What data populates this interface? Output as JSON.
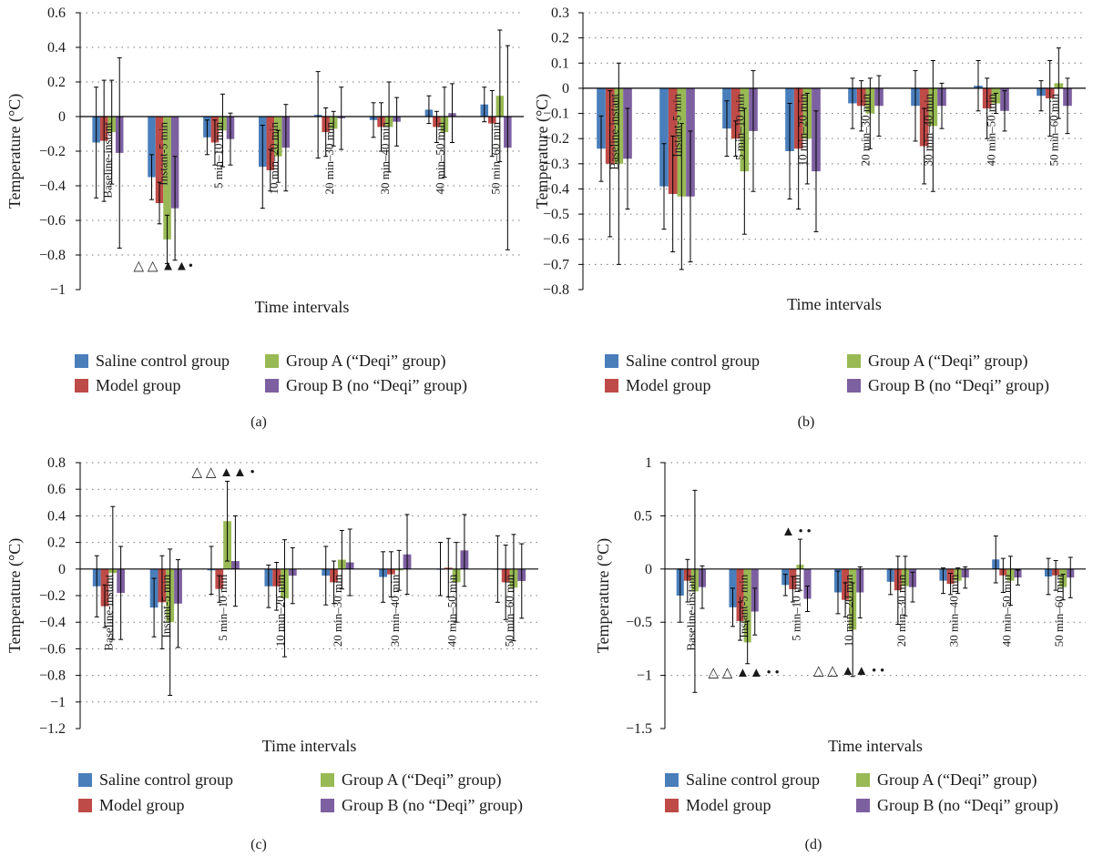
{
  "colors": {
    "saline": "#4a7ebb",
    "model": "#be4b48",
    "groupA": "#98b954",
    "groupB": "#7d60a0"
  },
  "chart_data": [
    {
      "type": "bar",
      "panel_label": "(a)",
      "xlabel": "Time intervals",
      "ylabel": "Temperature (°C)",
      "ylim": [
        -1,
        0.6
      ],
      "yticks": [
        -1,
        -0.8,
        -0.6,
        -0.4,
        -0.2,
        0,
        0.2,
        0.4,
        0.6
      ],
      "ytick_labels": [
        "−1",
        "−0.8",
        "−0.6",
        "−0.4",
        "−0.2",
        "0",
        "0.2",
        "0.4",
        "0.6"
      ],
      "categories": [
        "Baseline-instant",
        "Instant-5 min",
        "5 min–10 min",
        "10 min–20 min",
        "20 min–30 min",
        "30 min–40 min",
        "40 min–50 min",
        "50 min–60 min"
      ],
      "series": [
        {
          "name": "Saline control group",
          "color_key": "saline",
          "values": [
            -0.15,
            -0.35,
            -0.12,
            -0.29,
            0.01,
            -0.02,
            0.04,
            0.07
          ],
          "errors": [
            0.32,
            0.13,
            0.1,
            0.24,
            0.25,
            0.1,
            0.08,
            0.1
          ]
        },
        {
          "name": "Model group",
          "color_key": "model",
          "values": [
            -0.14,
            -0.5,
            -0.15,
            -0.31,
            -0.09,
            -0.06,
            -0.06,
            -0.04
          ],
          "errors": [
            0.35,
            0.12,
            0.13,
            0.12,
            0.14,
            0.14,
            0.09,
            0.19
          ]
        },
        {
          "name": "Group A (“Deqi” group)",
          "color_key": "groupA",
          "values": [
            -0.09,
            -0.71,
            -0.08,
            -0.23,
            -0.07,
            -0.06,
            -0.09,
            0.12
          ],
          "errors": [
            0.3,
            0.14,
            0.21,
            0.15,
            0.1,
            0.26,
            0.26,
            0.38
          ]
        },
        {
          "name": "Group B (no “Deqi” group)",
          "color_key": "groupB",
          "values": [
            -0.21,
            -0.53,
            -0.13,
            -0.18,
            -0.01,
            -0.03,
            0.02,
            -0.18
          ],
          "errors": [
            0.55,
            0.3,
            0.15,
            0.25,
            0.18,
            0.14,
            0.17,
            0.59
          ]
        }
      ],
      "annotations": [
        {
          "text": "△ △ ▲▲•",
          "category_index": 1,
          "y": -0.86
        }
      ],
      "grid": "dotted",
      "legend_position": "bottom"
    },
    {
      "type": "bar",
      "panel_label": "(b)",
      "xlabel": "Time intervals",
      "ylabel": "Temperature (°C)",
      "ylim": [
        -0.8,
        0.3
      ],
      "yticks": [
        -0.8,
        -0.7,
        -0.6,
        -0.5,
        -0.4,
        -0.3,
        -0.2,
        -0.1,
        0,
        0.1,
        0.2,
        0.3
      ],
      "ytick_labels": [
        "−0.8",
        "−0.7",
        "−0.6",
        "−0.5",
        "−0.4",
        "−0.3",
        "−0.2",
        "−0.1",
        "0",
        "0.1",
        "0.2",
        "0.3"
      ],
      "categories": [
        "Baseline-instant",
        "Instant-5 min",
        "5 min–10 min",
        "10 min–20 min",
        "20 min–30 min",
        "30 min–40 min",
        "40 min–50 min",
        "50 min–60 min"
      ],
      "series": [
        {
          "name": "Saline control group",
          "color_key": "saline",
          "values": [
            -0.24,
            -0.39,
            -0.16,
            -0.25,
            -0.06,
            -0.07,
            0.01,
            -0.03
          ],
          "errors": [
            0.13,
            0.17,
            0.11,
            0.19,
            0.1,
            0.14,
            0.1,
            0.06
          ]
        },
        {
          "name": "Model group",
          "color_key": "model",
          "values": [
            -0.3,
            -0.42,
            -0.2,
            -0.24,
            -0.07,
            -0.23,
            -0.08,
            -0.04
          ],
          "errors": [
            0.29,
            0.23,
            0.07,
            0.24,
            0.1,
            0.15,
            0.12,
            0.15
          ]
        },
        {
          "name": "Group A (“Deqi” group)",
          "color_key": "groupA",
          "values": [
            -0.3,
            -0.43,
            -0.33,
            -0.2,
            -0.1,
            -0.15,
            -0.06,
            0.02
          ],
          "errors": [
            0.4,
            0.29,
            0.25,
            0.18,
            0.14,
            0.26,
            0.04,
            0.14
          ]
        },
        {
          "name": "Group B (no “Deqi” group)",
          "color_key": "groupB",
          "values": [
            -0.28,
            -0.43,
            -0.17,
            -0.33,
            -0.07,
            -0.07,
            -0.09,
            -0.07
          ],
          "errors": [
            0.2,
            0.26,
            0.24,
            0.24,
            0.12,
            0.09,
            0.08,
            0.11
          ]
        }
      ],
      "annotations": [],
      "grid": "dotted",
      "legend_position": "bottom"
    },
    {
      "type": "bar",
      "panel_label": "(c)",
      "xlabel": "Time intervals",
      "ylabel": "Temperature (°C)",
      "ylim": [
        -1.2,
        0.8
      ],
      "yticks": [
        -1.2,
        -1,
        -0.8,
        -0.6,
        -0.4,
        -0.2,
        0,
        0.2,
        0.4,
        0.6,
        0.8
      ],
      "ytick_labels": [
        "−1.2",
        "−1",
        "−0.8",
        "−0.6",
        "−0.4",
        "−0.2",
        "0",
        "0.2",
        "0.4",
        "0.6",
        "0.8"
      ],
      "categories": [
        "Baseline-instant",
        "Instant-5 min",
        "5 min–10 min",
        "10 min–20 min",
        "20 min–30 min",
        "30 min–40 min",
        "40 min–50 min",
        "50 min–60 min"
      ],
      "series": [
        {
          "name": "Saline control group",
          "color_key": "saline",
          "values": [
            -0.13,
            -0.29,
            -0.01,
            -0.13,
            -0.05,
            -0.06,
            0.0,
            0.0
          ],
          "errors": [
            0.23,
            0.22,
            0.18,
            0.16,
            0.22,
            0.19,
            0.2,
            0.25
          ]
        },
        {
          "name": "Model group",
          "color_key": "model",
          "values": [
            -0.28,
            -0.25,
            -0.15,
            -0.13,
            -0.1,
            -0.04,
            0.01,
            -0.1
          ],
          "errors": [
            0.16,
            0.35,
            0.1,
            0.18,
            0.16,
            0.17,
            0.22,
            0.28
          ]
        },
        {
          "name": "Group A (“Deqi” group)",
          "color_key": "groupA",
          "values": [
            -0.03,
            -0.4,
            0.36,
            -0.22,
            0.07,
            -0.01,
            -0.1,
            -0.14
          ],
          "errors": [
            0.5,
            0.55,
            0.3,
            0.44,
            0.22,
            0.15,
            0.3,
            0.4
          ]
        },
        {
          "name": "Group B (no “Deqi” group)",
          "color_key": "groupB",
          "values": [
            -0.18,
            -0.26,
            0.06,
            -0.05,
            0.05,
            0.11,
            0.14,
            -0.09
          ],
          "errors": [
            0.35,
            0.33,
            0.34,
            0.21,
            0.25,
            0.3,
            0.27,
            0.28
          ]
        }
      ],
      "annotations": [
        {
          "text": "△ △ ▲▲ •",
          "category_index": 2,
          "y": 0.73
        }
      ],
      "grid": "dotted",
      "legend_position": "bottom"
    },
    {
      "type": "bar",
      "panel_label": "(d)",
      "xlabel": "Time intervals",
      "ylabel": "Temperature (°C)",
      "ylim": [
        -1.5,
        1
      ],
      "yticks": [
        -1.5,
        -1,
        -0.5,
        0,
        0.5,
        1
      ],
      "ytick_labels": [
        "−1.5",
        "−1",
        "−0.5",
        "0",
        "0.5",
        "1"
      ],
      "categories": [
        "Baseline-instant",
        "Instant-5 min",
        "5 min–10 min",
        "10 min–20 min",
        "20 min–30 min",
        "30 min–40 min",
        "40 min–50 min",
        "50 min–60 min"
      ],
      "series": [
        {
          "name": "Saline control group",
          "color_key": "saline",
          "values": [
            -0.25,
            -0.36,
            -0.15,
            -0.22,
            -0.12,
            -0.11,
            0.09,
            -0.07
          ],
          "errors": [
            0.25,
            0.18,
            0.1,
            0.2,
            0.12,
            0.12,
            0.22,
            0.17
          ]
        },
        {
          "name": "Model group",
          "color_key": "model",
          "values": [
            -0.11,
            -0.49,
            -0.19,
            -0.29,
            -0.2,
            -0.14,
            -0.06,
            -0.06
          ],
          "errors": [
            0.2,
            0.18,
            0.12,
            0.16,
            0.32,
            0.1,
            0.16,
            0.14
          ]
        },
        {
          "name": "Group A (“Deqi” group)",
          "color_key": "groupA",
          "values": [
            -0.21,
            -0.69,
            0.04,
            -0.57,
            -0.16,
            -0.11,
            -0.11,
            -0.17
          ],
          "errors": [
            0.95,
            0.2,
            0.24,
            0.44,
            0.28,
            0.12,
            0.23,
            0.12
          ]
        },
        {
          "name": "Group B (no “Deqi” group)",
          "color_key": "groupB",
          "values": [
            -0.17,
            -0.4,
            -0.28,
            -0.22,
            -0.17,
            -0.08,
            -0.08,
            -0.08
          ],
          "errors": [
            0.2,
            0.22,
            0.12,
            0.24,
            0.14,
            0.1,
            0.07,
            0.19
          ]
        }
      ],
      "annotations": [
        {
          "text": "△ △ ▲▲ • •",
          "category_index": 1,
          "y": -0.97
        },
        {
          "text": "▲ • •",
          "category_index": 2,
          "y": 0.36
        },
        {
          "text": "△ △ ▲▲ • •",
          "category_index": 3,
          "y": -0.95
        }
      ],
      "grid": "dotted",
      "legend_position": "bottom"
    }
  ]
}
